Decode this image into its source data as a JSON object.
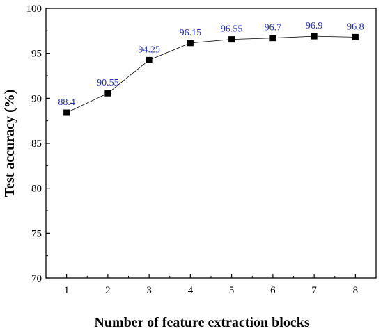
{
  "chart_data": {
    "type": "line",
    "x": [
      1,
      2,
      3,
      4,
      5,
      6,
      7,
      8
    ],
    "series": [
      {
        "values": [
          88.4,
          90.55,
          94.25,
          96.15,
          96.55,
          96.7,
          96.9,
          96.8
        ],
        "labels": [
          "88.4",
          "90.55",
          "94.25",
          "96.15",
          "96.55",
          "96.7",
          "96.9",
          "96.8"
        ]
      }
    ],
    "xlabel": "Number of feature extraction blocks",
    "ylabel": "Test accuracy (%)",
    "xlim": [
      0.5,
      8.5
    ],
    "ylim": [
      70,
      100
    ],
    "xticks": [
      "1",
      "2",
      "3",
      "4",
      "5",
      "6",
      "7",
      "8"
    ],
    "yticks": [
      "70",
      "75",
      "80",
      "85",
      "90",
      "95",
      "100"
    ],
    "grid": false,
    "marker": "square",
    "colors": {
      "line": "#000000",
      "marker": "#000000",
      "data_label": "#1f2ccc"
    }
  }
}
